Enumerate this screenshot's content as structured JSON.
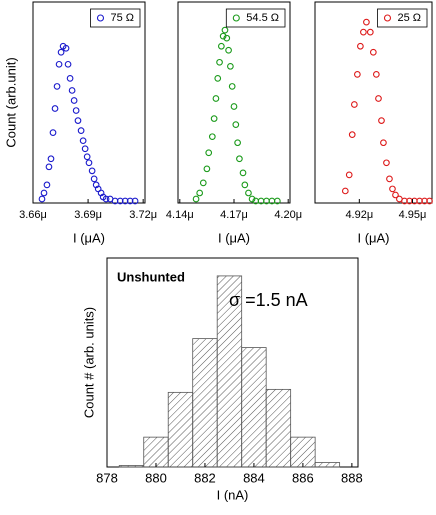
{
  "chart_data": [
    {
      "type": "scatter",
      "xlabel": "I (μA)",
      "ylabel": "Count (arb.unit)",
      "xlim": [
        3.66,
        3.721
      ],
      "ylim": [
        0,
        1
      ],
      "xticks": [
        {
          "value": 3.66,
          "label": "3.66μ"
        },
        {
          "value": 3.69,
          "label": "3.69μ"
        },
        {
          "value": 3.72,
          "label": "3.72μ"
        }
      ],
      "x": [
        3.6649,
        3.666,
        3.6676,
        3.6687,
        3.6698,
        3.6709,
        3.672,
        3.6731,
        3.6742,
        3.6753,
        3.6764,
        3.678,
        3.6791,
        3.6802,
        3.6813,
        3.6824,
        3.6835,
        3.6845,
        3.6862,
        3.6873,
        3.6884,
        3.6895,
        3.6905,
        3.6922,
        3.6933,
        3.6944,
        3.6955,
        3.6971,
        3.6982,
        3.6998,
        3.702,
        3.7047,
        3.7075,
        3.7102,
        3.7129,
        3.7156
      ],
      "series": [
        {
          "name": "75 Ω",
          "color": "#1a1acc",
          "values": [
            0.02,
            0.05,
            0.09,
            0.18,
            0.22,
            0.35,
            0.47,
            0.58,
            0.69,
            0.75,
            0.78,
            0.77,
            0.69,
            0.62,
            0.56,
            0.51,
            0.46,
            0.41,
            0.36,
            0.31,
            0.27,
            0.23,
            0.2,
            0.16,
            0.12,
            0.09,
            0.07,
            0.05,
            0.03,
            0.02,
            0.02,
            0.01,
            0.01,
            0.01,
            0.01,
            0.01
          ]
        }
      ]
    },
    {
      "type": "scatter",
      "xlabel": "I (μA)",
      "xlim": [
        4.139,
        4.201
      ],
      "ylim": [
        0,
        1
      ],
      "xticks": [
        {
          "value": 4.14,
          "label": "4.14μ"
        },
        {
          "value": 4.17,
          "label": "4.17μ"
        },
        {
          "value": 4.2,
          "label": "4.20μ"
        }
      ],
      "x": [
        4.149,
        4.151,
        4.153,
        4.155,
        4.156,
        4.158,
        4.159,
        4.16,
        4.161,
        4.162,
        4.163,
        4.164,
        4.165,
        4.166,
        4.167,
        4.168,
        4.169,
        4.17,
        4.171,
        4.172,
        4.173,
        4.175,
        4.176,
        4.178,
        4.18,
        4.182,
        4.185,
        4.188,
        4.191,
        4.194
      ],
      "series": [
        {
          "name": "54.5 Ω",
          "color": "#1a9a1a",
          "values": [
            0.02,
            0.05,
            0.1,
            0.17,
            0.25,
            0.33,
            0.42,
            0.52,
            0.62,
            0.7,
            0.78,
            0.83,
            0.86,
            0.82,
            0.76,
            0.68,
            0.58,
            0.48,
            0.39,
            0.3,
            0.22,
            0.15,
            0.09,
            0.05,
            0.02,
            0.01,
            0.01,
            0.01,
            0.01,
            0.01
          ]
        }
      ]
    },
    {
      "type": "scatter",
      "xlabel": "I (μA)",
      "xlim": [
        4.895,
        4.961
      ],
      "ylim": [
        0,
        1
      ],
      "xticks": [
        {
          "value": 4.92,
          "label": "4.92μ"
        },
        {
          "value": 4.95,
          "label": "4.95μ"
        }
      ],
      "x": [
        4.9121,
        4.9143,
        4.916,
        4.9172,
        4.9189,
        4.9206,
        4.9223,
        4.924,
        4.9262,
        4.9279,
        4.9296,
        4.9308,
        4.9325,
        4.9336,
        4.9353,
        4.937,
        4.9387,
        4.9404,
        4.9426,
        4.9455,
        4.9483,
        4.9511,
        4.954,
        4.9568,
        4.9596
      ],
      "series": [
        {
          "name": "25 Ω",
          "color": "#dd1a1a",
          "values": [
            0.06,
            0.14,
            0.34,
            0.49,
            0.64,
            0.78,
            0.85,
            0.9,
            0.85,
            0.75,
            0.64,
            0.52,
            0.41,
            0.3,
            0.2,
            0.12,
            0.07,
            0.04,
            0.02,
            0.01,
            0.01,
            0.01,
            0.01,
            0.01,
            0.01
          ]
        }
      ]
    },
    {
      "type": "histogram",
      "label": "Unshunted",
      "annotation": "σ =1.5 nA",
      "xlabel": "I (nA)",
      "ylabel": "Count # (arb. units)",
      "xlim": [
        878,
        888.25
      ],
      "ylim": [
        0,
        70
      ],
      "xticks": [
        878,
        880,
        882,
        884,
        886,
        888
      ],
      "bins": [
        878.5,
        879.5,
        880.5,
        881.5,
        882.5,
        883.5,
        884.5,
        885.5,
        886.5,
        887.5
      ],
      "values": [
        0.5,
        10,
        25,
        43,
        64,
        40,
        26,
        10,
        1.5
      ],
      "color": "#555555",
      "hatch": true
    }
  ]
}
